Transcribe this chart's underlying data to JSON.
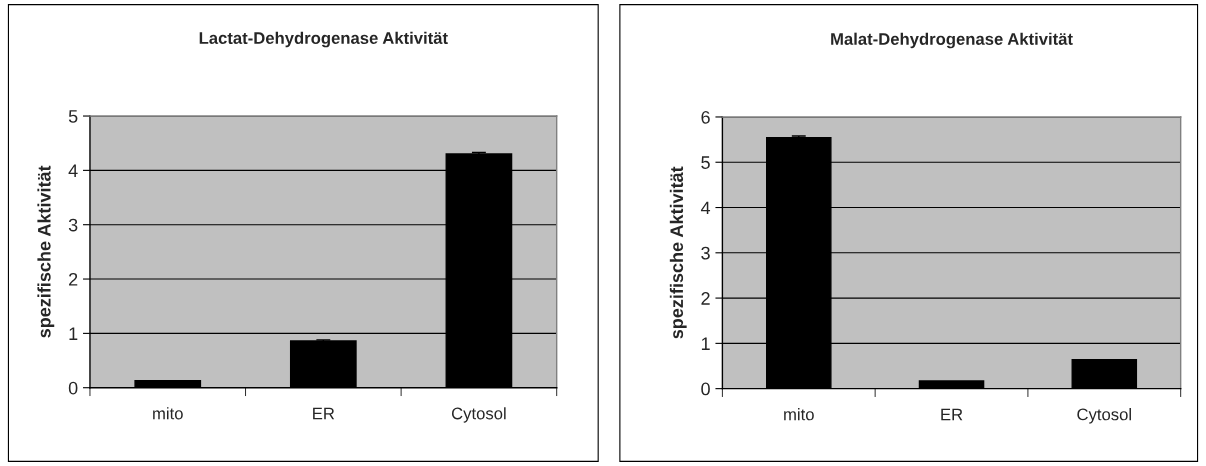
{
  "chart_data": [
    {
      "type": "bar",
      "title": "Lactat-Dehydrogenase Aktivität",
      "ylabel": "spezifische Aktivität",
      "categories": [
        "mito",
        "ER",
        "Cytosol"
      ],
      "values": [
        0.13,
        0.86,
        4.3
      ],
      "errors": [
        null,
        0.02,
        0.03
      ],
      "color": "#000000",
      "ylim": [
        0,
        5
      ],
      "yticks": [
        0,
        1,
        2,
        3,
        4,
        5
      ],
      "grid": "y",
      "legend": false
    },
    {
      "type": "bar",
      "title": "Malat-Dehydrogenase Aktivität",
      "ylabel": "spezifische Aktivität",
      "categories": [
        "mito",
        "ER",
        "Cytosol"
      ],
      "values": [
        5.54,
        0.17,
        0.64
      ],
      "errors": [
        0.04,
        null,
        null
      ],
      "color": "#000000",
      "ylim": [
        0,
        6
      ],
      "yticks": [
        0,
        1,
        2,
        3,
        4,
        5,
        6
      ],
      "grid": "y",
      "legend": false
    }
  ]
}
